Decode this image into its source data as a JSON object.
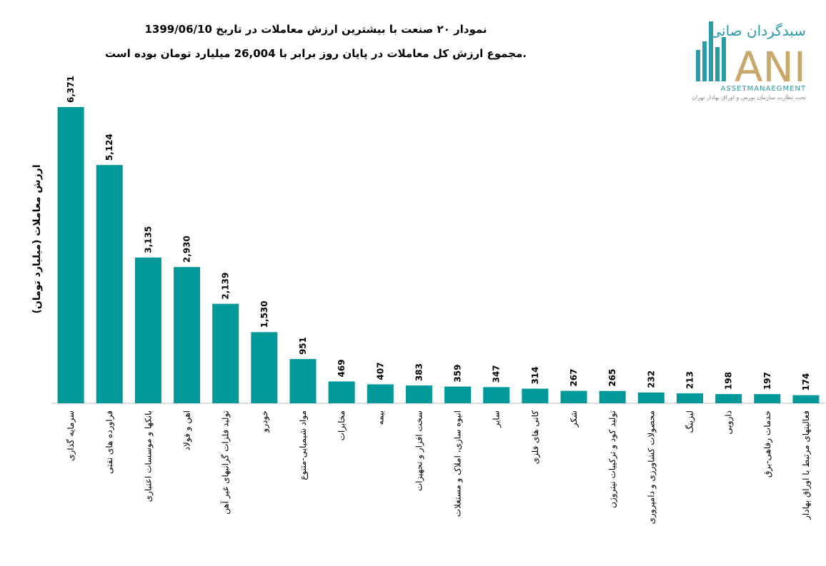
{
  "chart_data": {
    "type": "bar",
    "title": "نمودار ۲۰ صنعت با بیشترین ارزش معاملات در تاریخ 1399/06/10",
    "subtitle": "مجموع ارزش کل معاملات در پایان روز برابر با 26,004 میلیارد تومان بوده است.",
    "y_label": "ارزش معاملات (میلیارد تومان)",
    "categories": [
      "سرمایه گذاری",
      "فراورده های نفتی",
      "بانکها و موسسات اعتباری",
      "اهن و فولاد",
      "تولید فلزات گرانبهای غیر آهن",
      "خودرو",
      "مواد شیمیایی-متنوع",
      "مخابرات",
      "بیمه",
      "سخت افزار و تجهیزات",
      "انبوه سازی، املاک و مستغلات",
      "سایر",
      "کانی های فلزی",
      "شکر",
      "تولید کود و ترکیبات نیتروژن",
      "محصولات کشاورزی و دامپروری",
      "لیزینگ",
      "دارویی",
      "خدمات رفاهی-برق",
      "فعالیتهای مرتبط با اوراق بهادار"
    ],
    "values": [
      6371,
      5124,
      3135,
      2930,
      2139,
      1530,
      951,
      469,
      407,
      383,
      359,
      347,
      314,
      267,
      265,
      232,
      213,
      198,
      197,
      174
    ],
    "value_labels": [
      "6,371",
      "5,124",
      "3,135",
      "2,930",
      "2,139",
      "1,530",
      "951",
      "469",
      "407",
      "383",
      "359",
      "347",
      "314",
      "267",
      "265",
      "232",
      "213",
      "198",
      "197",
      "174"
    ],
    "color": "#009999",
    "ylim": [
      0,
      7000
    ]
  },
  "logo": {
    "name_fa": "سبدگردان صانی",
    "name_en": "ANI",
    "tagline": "ASSETMANAEGMENT",
    "note": "تحت نظارت سازمان بورس و اوراق بهادار تهران"
  }
}
